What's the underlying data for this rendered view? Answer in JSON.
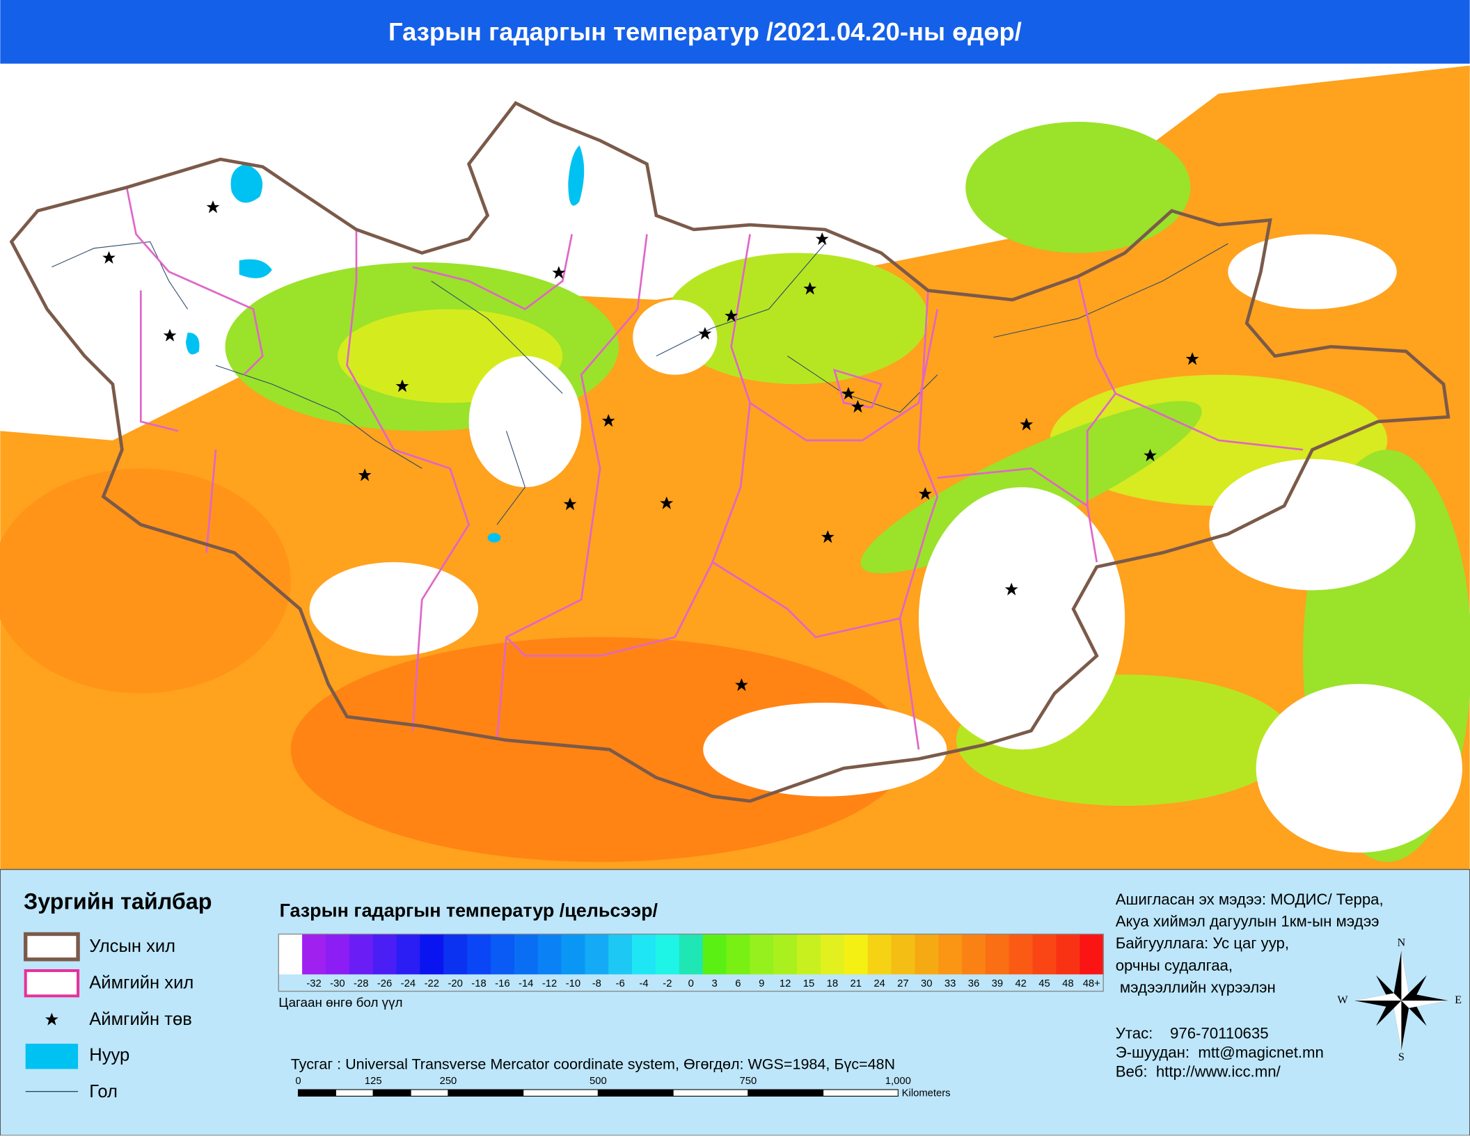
{
  "header": {
    "title": "Газрын гадаргын температур /2021.04.20-ны өдөр/"
  },
  "legend": {
    "title": "Зургийн тайлбар",
    "items": [
      "Улсын хил",
      "Аймгийн хил",
      "Аймгийн төв",
      "Нуур",
      "Гол"
    ]
  },
  "colorbar": {
    "title": "Газрын гадаргын температур /цельсээр/",
    "labels": [
      "-32",
      "-30",
      "-28",
      "-26",
      "-24",
      "-22",
      "-20",
      "-18",
      "-16",
      "-14",
      "-12",
      "-10",
      "-8",
      "-6",
      "-4",
      "-2",
      "0",
      "3",
      "6",
      "9",
      "12",
      "15",
      "18",
      "21",
      "24",
      "27",
      "30",
      "33",
      "36",
      "39",
      "42",
      "45",
      "48",
      "48+"
    ],
    "colors": [
      "#a020f0",
      "#8c1ef5",
      "#6a1ef5",
      "#4a1ef5",
      "#2a1ef5",
      "#0a14f0",
      "#0a32f0",
      "#0a46f5",
      "#0a5af5",
      "#0a6ef5",
      "#0a82f5",
      "#0a96f5",
      "#14aaf5",
      "#1ec8f5",
      "#1ee6f5",
      "#1ef5e6",
      "#1ee6b4",
      "#5af014",
      "#78f014",
      "#96f01e",
      "#aaf01e",
      "#c8f01e",
      "#e1f01e",
      "#f5f014",
      "#f5d214",
      "#f5be14",
      "#f5aa14",
      "#fa9614",
      "#fa8214",
      "#fa6e14",
      "#fa5a14",
      "#fa4614",
      "#fa3214",
      "#fa1414"
    ],
    "note": "Цагаан өнгө бол үүл"
  },
  "projection": "Тусгаг : Universal Transverse Mercator coordinate system, Өгөгдөл: WGS=1984, Бүс=48N",
  "scalebar": {
    "ticks": [
      "0",
      "125",
      "250",
      "500",
      "750",
      "1,000"
    ],
    "unit": "Kilometers"
  },
  "source": {
    "lines": [
      "Ашигласан эх мэдээ: МОДИС/ Терра,",
      "Акуа хиймэл дагуулын 1км-ын мэдээ",
      "Байгууллага: Ус цаг уур,",
      "орчны судалгаа,",
      " мэдээллийн хүрээлэн"
    ]
  },
  "contact": {
    "lines": [
      "Утас:    976-70110635",
      "Э-шуудан:  mtt@magicnet.mn",
      "Веб:  http://www.icc.mn/"
    ]
  },
  "compass": {
    "n": "N",
    "e": "E",
    "s": "S",
    "w": "W"
  }
}
